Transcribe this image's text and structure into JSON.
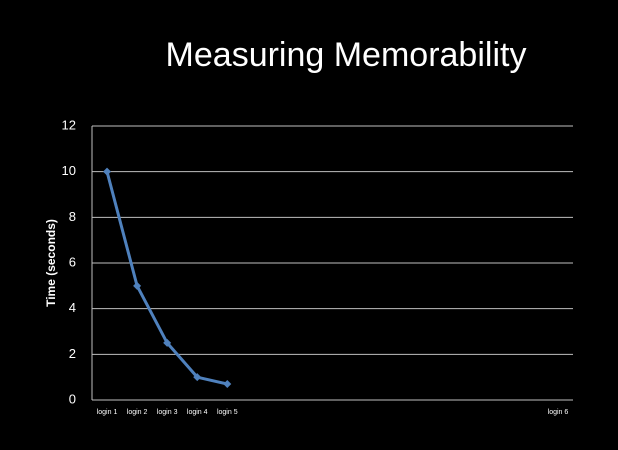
{
  "chart_data": {
    "type": "line",
    "title": "Measuring Memorability",
    "y_label": "Time (seconds)",
    "categories": [
      "login 1",
      "login 2",
      "login 3",
      "login 4",
      "login 5",
      null,
      null,
      null,
      null,
      null,
      null,
      null,
      null,
      null,
      null,
      "login 6"
    ],
    "series": [
      {
        "name": "Time",
        "color": "#4f81bd",
        "values": [
          10,
          5,
          2.5,
          1,
          0.7,
          null,
          null,
          null,
          null,
          null,
          null,
          null,
          null,
          null,
          null,
          null
        ]
      }
    ],
    "ylim": [
      0,
      12
    ],
    "yticks": [
      0,
      2,
      4,
      6,
      8,
      10,
      12
    ],
    "grid": true
  }
}
